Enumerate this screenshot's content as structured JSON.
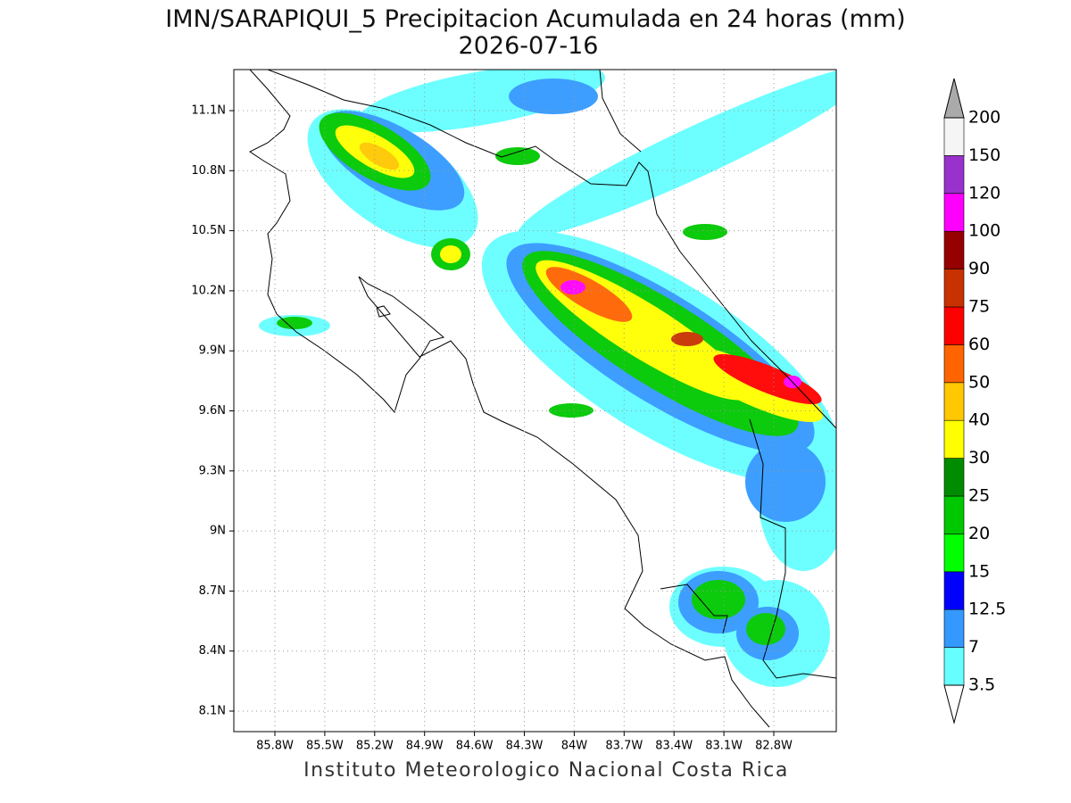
{
  "header": {
    "title": "IMN/SARAPIQUI_5 Precipitacion Acumulada en 24 horas (mm)",
    "date": "2026-07-16"
  },
  "map": {
    "lon_labels": [
      "85.8W",
      "85.5W",
      "85.2W",
      "84.9W",
      "84.6W",
      "84.3W",
      "84W",
      "83.7W",
      "83.4W",
      "83.1W",
      "82.8W"
    ],
    "lat_labels": [
      "11.1N",
      "10.8N",
      "10.5N",
      "10.2N",
      "9.9N",
      "9.6N",
      "9.3N",
      "9N",
      "8.7N",
      "8.4N",
      "8.1N"
    ]
  },
  "colorbar": {
    "labels": [
      "3.5",
      "7",
      "12.5",
      "15",
      "20",
      "25",
      "30",
      "40",
      "50",
      "60",
      "75",
      "90",
      "100",
      "120",
      "150",
      "200"
    ],
    "colors": [
      "#66ffff",
      "#3399ff",
      "#0000ff",
      "#00ff00",
      "#00c800",
      "#008c00",
      "#ffff00",
      "#ffc800",
      "#ff6400",
      "#ff0000",
      "#c83200",
      "#960000",
      "#ff00ff",
      "#9932cc",
      "#f5f5f5"
    ],
    "over_color": "#aaaaaa"
  },
  "footer": "Instituto Meteorologico Nacional Costa Rica"
}
